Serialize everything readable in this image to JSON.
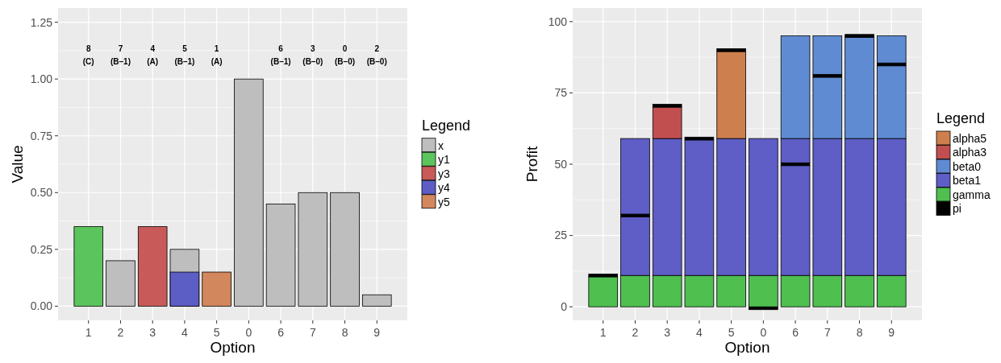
{
  "chart_data": [
    {
      "type": "bar",
      "xlabel": "Option",
      "ylabel": "Value",
      "legend_title": "Legend",
      "legend": "right",
      "grid": true,
      "categories": [
        "1",
        "2",
        "3",
        "4",
        "5",
        "0",
        "6",
        "7",
        "8",
        "9"
      ],
      "series": [
        {
          "name": "x",
          "color": "#bebebe",
          "values": [
            null,
            0.2,
            null,
            0.25,
            null,
            1.0,
            0.45,
            0.5,
            0.5,
            0.05
          ]
        },
        {
          "name": "y1",
          "color": "#5cc45c",
          "values": [
            0.35,
            null,
            null,
            null,
            null,
            null,
            null,
            null,
            null,
            null
          ]
        },
        {
          "name": "y3",
          "color": "#c85a5a",
          "values": [
            null,
            null,
            0.35,
            null,
            null,
            null,
            null,
            null,
            null,
            null
          ]
        },
        {
          "name": "y4",
          "color": "#5d5dc6",
          "values": [
            null,
            null,
            null,
            0.15,
            null,
            null,
            null,
            null,
            null,
            null
          ]
        },
        {
          "name": "y5",
          "color": "#d2875c",
          "values": [
            null,
            null,
            null,
            null,
            0.15,
            null,
            null,
            null,
            null,
            null
          ]
        }
      ],
      "ylim": [
        -0.0625,
        1.3125
      ],
      "yticks": [
        {
          "value": 0,
          "label": "0.00"
        },
        {
          "value": 0.25,
          "label": "0.25"
        },
        {
          "value": 0.5,
          "label": "0.50"
        },
        {
          "value": 0.75,
          "label": "0.75"
        },
        {
          "value": 1,
          "label": "1.00"
        },
        {
          "value": 1.25,
          "label": "1.25"
        }
      ],
      "annotations": [
        "8\n(C)",
        "7\n(B–1)",
        "4\n(A)",
        "5\n(B–1)",
        "1\n(A)",
        "6\n(B–1)",
        "3\n(B–0)",
        "0\n(B–0)",
        "2\n(B–0)"
      ]
    },
    {
      "type": "bar",
      "stacked": true,
      "xlabel": "Option",
      "ylabel": "Profit",
      "legend_title": "Legend",
      "legend": "right",
      "grid": true,
      "categories": [
        "1",
        "2",
        "3",
        "4",
        "5",
        "0",
        "6",
        "7",
        "8",
        "9"
      ],
      "series": [
        {
          "name": "pi",
          "color": "#000000",
          "values": [
            null,
            null,
            null,
            null,
            null,
            -1,
            null,
            null,
            null,
            null
          ]
        },
        {
          "name": "gamma",
          "color": "#4fbf4f",
          "values": [
            10.5,
            11,
            11,
            11,
            11,
            11,
            11,
            11,
            11,
            11
          ]
        },
        {
          "name": "beta1",
          "color": "#5f5dc6",
          "values": [
            null,
            20.5,
            48,
            47.5,
            48,
            48,
            38.5,
            48,
            48,
            48
          ]
        },
        {
          "color": "#000000",
          "values": [
            null,
            1,
            null,
            null,
            null,
            null,
            1,
            null,
            null,
            null
          ]
        },
        {
          "color": "#5f5dc6",
          "values": [
            null,
            26.5,
            null,
            null,
            null,
            null,
            8.5,
            null,
            null,
            null
          ]
        },
        {
          "name": "beta0",
          "color": "#5f8bd2",
          "values": [
            null,
            null,
            null,
            null,
            null,
            null,
            36,
            21.5,
            35.5,
            25.5
          ]
        },
        {
          "color": "#000000",
          "values": [
            null,
            null,
            null,
            null,
            null,
            null,
            null,
            1,
            null,
            1
          ]
        },
        {
          "color": "#5f8bd2",
          "values": [
            null,
            null,
            null,
            null,
            null,
            null,
            null,
            13.5,
            null,
            9.5
          ]
        },
        {
          "name": "alpha3",
          "color": "#c24f4f",
          "values": [
            null,
            null,
            11,
            null,
            null,
            null,
            null,
            null,
            null,
            null
          ]
        },
        {
          "name": "alpha5",
          "color": "#cd7f4e",
          "values": [
            null,
            null,
            null,
            null,
            30.5,
            null,
            null,
            null,
            null,
            null
          ]
        },
        {
          "color": "#000000",
          "values": [
            1,
            null,
            1,
            1,
            1,
            null,
            null,
            null,
            1,
            null
          ]
        }
      ],
      "ylim": [
        -4.75,
        104.75
      ],
      "yticks": [
        0,
        25,
        50,
        75,
        100
      ]
    }
  ]
}
